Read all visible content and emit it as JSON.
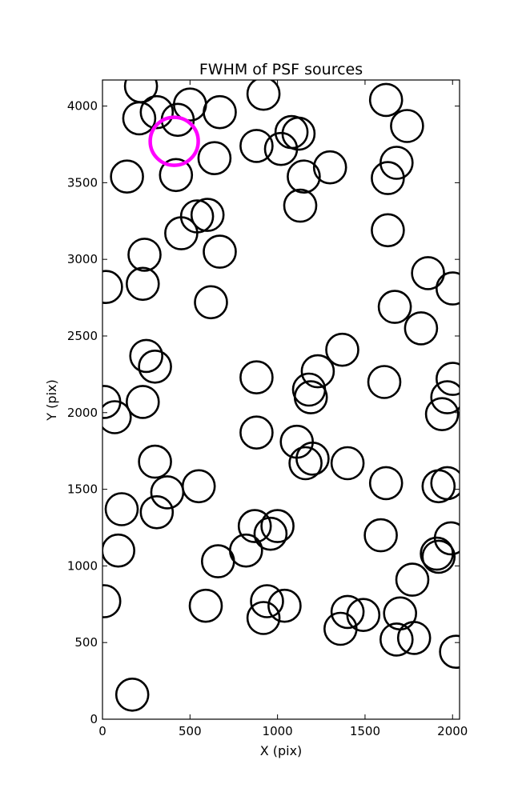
{
  "chart_data": {
    "type": "scatter",
    "title": "FWHM of PSF sources",
    "xlabel": "X (pix)",
    "ylabel": "Y (pix)",
    "xlim": [
      0,
      2040
    ],
    "ylim": [
      0,
      4170
    ],
    "xticks": [
      0,
      500,
      1000,
      1500,
      2000
    ],
    "yticks": [
      0,
      500,
      1000,
      1500,
      2000,
      2500,
      3000,
      3500,
      4000
    ],
    "grid": false,
    "marker": "open circle",
    "source_color": "#000000",
    "highlight_color": "#ff00ff",
    "sources": [
      [
        220,
        4130
      ],
      [
        210,
        3920
      ],
      [
        310,
        3960
      ],
      [
        430,
        3910
      ],
      [
        500,
        4010
      ],
      [
        670,
        3960
      ],
      [
        920,
        4080
      ],
      [
        1080,
        3830
      ],
      [
        1120,
        3820
      ],
      [
        1020,
        3720
      ],
      [
        880,
        3740
      ],
      [
        1150,
        3540
      ],
      [
        1300,
        3600
      ],
      [
        640,
        3660
      ],
      [
        140,
        3540
      ],
      [
        420,
        3550
      ],
      [
        1620,
        4040
      ],
      [
        1740,
        3870
      ],
      [
        1680,
        3630
      ],
      [
        1630,
        3530
      ],
      [
        1130,
        3350
      ],
      [
        540,
        3280
      ],
      [
        600,
        3290
      ],
      [
        450,
        3170
      ],
      [
        1630,
        3190
      ],
      [
        240,
        3030
      ],
      [
        670,
        3050
      ],
      [
        20,
        2820
      ],
      [
        230,
        2840
      ],
      [
        620,
        2720
      ],
      [
        1860,
        2910
      ],
      [
        2000,
        2810
      ],
      [
        1670,
        2690
      ],
      [
        1820,
        2550
      ],
      [
        1370,
        2410
      ],
      [
        250,
        2370
      ],
      [
        300,
        2300
      ],
      [
        880,
        2230
      ],
      [
        1230,
        2270
      ],
      [
        1610,
        2200
      ],
      [
        2000,
        2220
      ],
      [
        1970,
        2100
      ],
      [
        230,
        2070
      ],
      [
        1180,
        2150
      ],
      [
        1190,
        2100
      ],
      [
        10,
        2070
      ],
      [
        70,
        1970
      ],
      [
        1940,
        1990
      ],
      [
        880,
        1870
      ],
      [
        1110,
        1810
      ],
      [
        1200,
        1700
      ],
      [
        1160,
        1670
      ],
      [
        1400,
        1670
      ],
      [
        300,
        1680
      ],
      [
        550,
        1520
      ],
      [
        370,
        1480
      ],
      [
        1620,
        1540
      ],
      [
        1920,
        1520
      ],
      [
        1970,
        1540
      ],
      [
        110,
        1370
      ],
      [
        310,
        1350
      ],
      [
        870,
        1260
      ],
      [
        1000,
        1260
      ],
      [
        960,
        1210
      ],
      [
        820,
        1100
      ],
      [
        660,
        1030
      ],
      [
        90,
        1100
      ],
      [
        1590,
        1200
      ],
      [
        1990,
        1180
      ],
      [
        1910,
        1080
      ],
      [
        1920,
        1060
      ],
      [
        1770,
        910
      ],
      [
        10,
        770
      ],
      [
        590,
        740
      ],
      [
        940,
        770
      ],
      [
        1040,
        740
      ],
      [
        920,
        660
      ],
      [
        1400,
        700
      ],
      [
        1490,
        680
      ],
      [
        1700,
        690
      ],
      [
        1360,
        590
      ],
      [
        1680,
        520
      ],
      [
        1780,
        530
      ],
      [
        2020,
        440
      ],
      [
        170,
        160
      ]
    ],
    "highlight": [
      [
        410,
        3770
      ]
    ]
  }
}
